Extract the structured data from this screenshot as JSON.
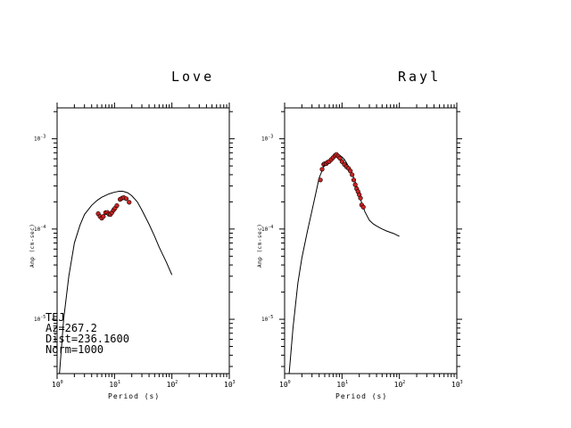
{
  "chart_data": [
    {
      "type": "scatter",
      "title": "Love",
      "xlabel": "Period (s)",
      "ylabel": "Amp (cm-sec)",
      "xscale": "log",
      "yscale": "log",
      "xlim": [
        1,
        1000
      ],
      "ylim": [
        2.5e-06,
        0.0022
      ],
      "x_ticks": [
        {
          "base": "10",
          "exp": "0"
        },
        {
          "base": "10",
          "exp": "1"
        },
        {
          "base": "10",
          "exp": "2"
        },
        {
          "base": "10",
          "exp": "3"
        }
      ],
      "y_ticks": [
        {
          "base": "10",
          "exp": "-3",
          "value": 0.001
        },
        {
          "base": "10",
          "exp": "-4",
          "value": 0.0001
        },
        {
          "base": "10",
          "exp": "-5",
          "value": 1e-05
        }
      ],
      "series": [
        {
          "style": "line",
          "color": "#000000",
          "x": [
            1.1,
            1.3,
            1.6,
            2,
            2.5,
            3,
            4,
            5,
            6,
            8,
            10,
            12,
            14,
            17,
            20,
            25,
            30,
            40,
            50,
            60,
            80,
            100
          ],
          "y": [
            2.5e-06,
            1e-05,
            3e-05,
            7e-05,
            0.00011,
            0.000145,
            0.000183,
            0.000208,
            0.000225,
            0.000245,
            0.000256,
            0.000262,
            0.000262,
            0.000252,
            0.000234,
            0.0002,
            0.000162,
            0.000113,
            8.3e-05,
            6.3e-05,
            4.3e-05,
            3.1e-05
          ]
        },
        {
          "style": "markers",
          "color": "#cc2222",
          "x": [
            5.2,
            5.6,
            6.0,
            6.4,
            7.0,
            7.5,
            8.0,
            8.5,
            9.0,
            9.6,
            10.2,
            11.0,
            12.5,
            13.5,
            14.5,
            16.0,
            18.0
          ],
          "y": [
            0.000148,
            0.000138,
            0.000132,
            0.000138,
            0.000152,
            0.000153,
            0.000146,
            0.000145,
            0.000152,
            0.000162,
            0.00017,
            0.000182,
            0.000213,
            0.00022,
            0.000223,
            0.000217,
            0.000198
          ]
        }
      ],
      "annotation": [
        "TEJ",
        "Az=267.2",
        "Dist=236.1600",
        "Norm=1000"
      ],
      "grid": false
    },
    {
      "type": "scatter",
      "title": "Rayl",
      "xlabel": "Period (s)",
      "ylabel": "Amp (cm-sec)",
      "xscale": "log",
      "yscale": "log",
      "xlim": [
        1,
        1000
      ],
      "ylim": [
        2.5e-06,
        0.0022
      ],
      "x_ticks": [
        {
          "base": "10",
          "exp": "0"
        },
        {
          "base": "10",
          "exp": "1"
        },
        {
          "base": "10",
          "exp": "2"
        },
        {
          "base": "10",
          "exp": "3"
        }
      ],
      "y_ticks": [
        {
          "base": "10",
          "exp": "-3",
          "value": 0.001
        },
        {
          "base": "10",
          "exp": "-4",
          "value": 0.0001
        },
        {
          "base": "10",
          "exp": "-5",
          "value": 1e-05
        }
      ],
      "series": [
        {
          "style": "line",
          "color": "#000000",
          "x": [
            1.2,
            1.4,
            1.7,
            2,
            2.5,
            3,
            3.5,
            4,
            5,
            6,
            7,
            8,
            9,
            10,
            11,
            12,
            13,
            14,
            16,
            18,
            20,
            22,
            25,
            30,
            35,
            40,
            50,
            60,
            80,
            100
          ],
          "y": [
            2.5e-06,
            8e-06,
            2.5e-05,
            4.8e-05,
            9.5e-05,
            0.00016,
            0.00025,
            0.00037,
            0.00052,
            0.00059,
            0.00064,
            0.00067,
            0.00066,
            0.00063,
            0.00059,
            0.00054,
            0.00049,
            0.00044,
            0.00037,
            0.0003,
            0.00024,
            0.000195,
            0.000156,
            0.000125,
            0.000114,
            0.000108,
            0.0001,
            9.5e-05,
            8.9e-05,
            8.3e-05
          ]
        },
        {
          "style": "markers",
          "color": "#cc2222",
          "x": [
            4.2,
            4.5,
            4.8,
            5.0,
            5.3,
            5.6,
            6.0,
            6.5,
            7.0,
            7.5,
            8.0,
            8.6,
            9.2,
            10.0,
            11.0,
            12.0,
            13.0,
            14.0,
            15.0,
            16.0,
            17.0,
            18.0,
            19.0,
            20.0,
            21.0,
            22.0,
            23.5
          ],
          "y": [
            0.00035,
            0.00046,
            0.00052,
            0.00053,
            0.00053,
            0.00055,
            0.00056,
            0.00059,
            0.00062,
            0.00065,
            0.00067,
            0.00064,
            0.00061,
            0.00056,
            0.00052,
            0.00049,
            0.00047,
            0.00044,
            0.0004,
            0.00035,
            0.00031,
            0.00028,
            0.00026,
            0.00024,
            0.00022,
            0.000185,
            0.000175
          ]
        }
      ],
      "grid": false
    }
  ]
}
